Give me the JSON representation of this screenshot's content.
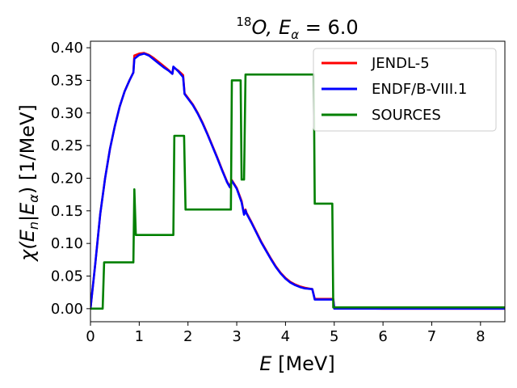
{
  "chart_data": {
    "type": "line",
    "title": {
      "superscript": "18",
      "isotope": "O,",
      "energy_symbol": "E",
      "energy_subscript": "α",
      "energy_value": " = 6.0"
    },
    "xlabel": {
      "symbol": "E",
      "unit": " [MeV]"
    },
    "ylabel": {
      "chi": "χ(",
      "en": "E",
      "en_sub": "n",
      "bar": "|",
      "ea": "E",
      "ea_sub": "α",
      "close": ")",
      "unit": " [1/MeV]"
    },
    "xlim": [
      0,
      8.5
    ],
    "ylim": [
      -0.02,
      0.41
    ],
    "x_ticks": [
      {
        "value": 0,
        "label": "0"
      },
      {
        "value": 1,
        "label": "1"
      },
      {
        "value": 2,
        "label": "2"
      },
      {
        "value": 3,
        "label": "3"
      },
      {
        "value": 4,
        "label": "4"
      },
      {
        "value": 5,
        "label": "5"
      },
      {
        "value": 6,
        "label": "6"
      },
      {
        "value": 7,
        "label": "7"
      },
      {
        "value": 8,
        "label": "8"
      }
    ],
    "y_ticks": [
      {
        "value": 0.0,
        "label": "0.00"
      },
      {
        "value": 0.05,
        "label": "0.05"
      },
      {
        "value": 0.1,
        "label": "0.10"
      },
      {
        "value": 0.15,
        "label": "0.15"
      },
      {
        "value": 0.2,
        "label": "0.20"
      },
      {
        "value": 0.25,
        "label": "0.25"
      },
      {
        "value": 0.3,
        "label": "0.30"
      },
      {
        "value": 0.35,
        "label": "0.35"
      },
      {
        "value": 0.4,
        "label": "0.40"
      }
    ],
    "grid": false,
    "legend_position": "top-right",
    "series": [
      {
        "name": "JENDL-5",
        "color": "#ff0000",
        "points": [
          [
            0,
            0
          ],
          [
            0.1,
            0.07
          ],
          [
            0.2,
            0.145
          ],
          [
            0.3,
            0.2
          ],
          [
            0.4,
            0.245
          ],
          [
            0.5,
            0.28
          ],
          [
            0.6,
            0.31
          ],
          [
            0.7,
            0.333
          ],
          [
            0.8,
            0.35
          ],
          [
            0.88,
            0.362
          ],
          [
            0.9,
            0.388
          ],
          [
            1.0,
            0.391
          ],
          [
            1.1,
            0.392
          ],
          [
            1.2,
            0.389
          ],
          [
            1.3,
            0.384
          ],
          [
            1.4,
            0.378
          ],
          [
            1.5,
            0.372
          ],
          [
            1.6,
            0.366
          ],
          [
            1.68,
            0.36
          ],
          [
            1.7,
            0.37
          ],
          [
            1.8,
            0.365
          ],
          [
            1.9,
            0.358
          ],
          [
            1.93,
            0.33
          ],
          [
            2.0,
            0.323
          ],
          [
            2.1,
            0.313
          ],
          [
            2.2,
            0.3
          ],
          [
            2.3,
            0.285
          ],
          [
            2.4,
            0.268
          ],
          [
            2.5,
            0.25
          ],
          [
            2.6,
            0.232
          ],
          [
            2.7,
            0.213
          ],
          [
            2.8,
            0.195
          ],
          [
            2.86,
            0.187
          ],
          [
            2.9,
            0.197
          ],
          [
            3.0,
            0.185
          ],
          [
            3.1,
            0.165
          ],
          [
            3.15,
            0.145
          ],
          [
            3.18,
            0.152
          ],
          [
            3.2,
            0.147
          ],
          [
            3.3,
            0.133
          ],
          [
            3.4,
            0.118
          ],
          [
            3.5,
            0.103
          ],
          [
            3.6,
            0.09
          ],
          [
            3.7,
            0.077
          ],
          [
            3.8,
            0.065
          ],
          [
            3.9,
            0.055
          ],
          [
            4.0,
            0.047
          ],
          [
            4.1,
            0.041
          ],
          [
            4.2,
            0.037
          ],
          [
            4.3,
            0.034
          ],
          [
            4.4,
            0.032
          ],
          [
            4.55,
            0.03
          ],
          [
            4.6,
            0.015
          ],
          [
            4.7,
            0.015
          ],
          [
            4.98,
            0.015
          ],
          [
            5.0,
            0.001
          ],
          [
            6.0,
            0.0
          ],
          [
            8.5,
            0.0
          ]
        ]
      },
      {
        "name": "ENDF/B-VIII.1",
        "color": "#0000ff",
        "points": [
          [
            0,
            0
          ],
          [
            0.1,
            0.07
          ],
          [
            0.2,
            0.145
          ],
          [
            0.3,
            0.2
          ],
          [
            0.4,
            0.245
          ],
          [
            0.5,
            0.28
          ],
          [
            0.6,
            0.31
          ],
          [
            0.7,
            0.333
          ],
          [
            0.8,
            0.35
          ],
          [
            0.88,
            0.362
          ],
          [
            0.9,
            0.383
          ],
          [
            1.0,
            0.389
          ],
          [
            1.1,
            0.391
          ],
          [
            1.2,
            0.388
          ],
          [
            1.3,
            0.382
          ],
          [
            1.4,
            0.376
          ],
          [
            1.5,
            0.37
          ],
          [
            1.6,
            0.365
          ],
          [
            1.68,
            0.36
          ],
          [
            1.7,
            0.371
          ],
          [
            1.8,
            0.364
          ],
          [
            1.9,
            0.355
          ],
          [
            1.93,
            0.329
          ],
          [
            2.0,
            0.322
          ],
          [
            2.1,
            0.312
          ],
          [
            2.2,
            0.299
          ],
          [
            2.3,
            0.284
          ],
          [
            2.4,
            0.267
          ],
          [
            2.5,
            0.249
          ],
          [
            2.6,
            0.231
          ],
          [
            2.7,
            0.212
          ],
          [
            2.8,
            0.194
          ],
          [
            2.86,
            0.186
          ],
          [
            2.9,
            0.196
          ],
          [
            3.0,
            0.184
          ],
          [
            3.1,
            0.163
          ],
          [
            3.15,
            0.144
          ],
          [
            3.18,
            0.151
          ],
          [
            3.2,
            0.146
          ],
          [
            3.3,
            0.132
          ],
          [
            3.4,
            0.117
          ],
          [
            3.5,
            0.102
          ],
          [
            3.6,
            0.089
          ],
          [
            3.7,
            0.076
          ],
          [
            3.8,
            0.064
          ],
          [
            3.9,
            0.054
          ],
          [
            4.0,
            0.046
          ],
          [
            4.1,
            0.04
          ],
          [
            4.2,
            0.036
          ],
          [
            4.3,
            0.033
          ],
          [
            4.4,
            0.031
          ],
          [
            4.55,
            0.03
          ],
          [
            4.6,
            0.014
          ],
          [
            4.7,
            0.014
          ],
          [
            4.98,
            0.014
          ],
          [
            5.0,
            0.0
          ],
          [
            6.0,
            0.0
          ],
          [
            8.5,
            0.0
          ]
        ]
      },
      {
        "name": "SOURCES",
        "color": "#008000",
        "points": [
          [
            0,
            0
          ],
          [
            0.25,
            0
          ],
          [
            0.28,
            0.071
          ],
          [
            0.88,
            0.071
          ],
          [
            0.9,
            0.183
          ],
          [
            0.93,
            0.113
          ],
          [
            1.7,
            0.113
          ],
          [
            1.72,
            0.265
          ],
          [
            1.92,
            0.265
          ],
          [
            1.95,
            0.152
          ],
          [
            2.88,
            0.152
          ],
          [
            2.9,
            0.35
          ],
          [
            3.08,
            0.35
          ],
          [
            3.1,
            0.198
          ],
          [
            3.15,
            0.198
          ],
          [
            3.18,
            0.359
          ],
          [
            4.58,
            0.359
          ],
          [
            4.6,
            0.161
          ],
          [
            4.96,
            0.161
          ],
          [
            4.98,
            0.002
          ],
          [
            6.0,
            0.002
          ],
          [
            8.5,
            0.002
          ]
        ]
      }
    ]
  }
}
